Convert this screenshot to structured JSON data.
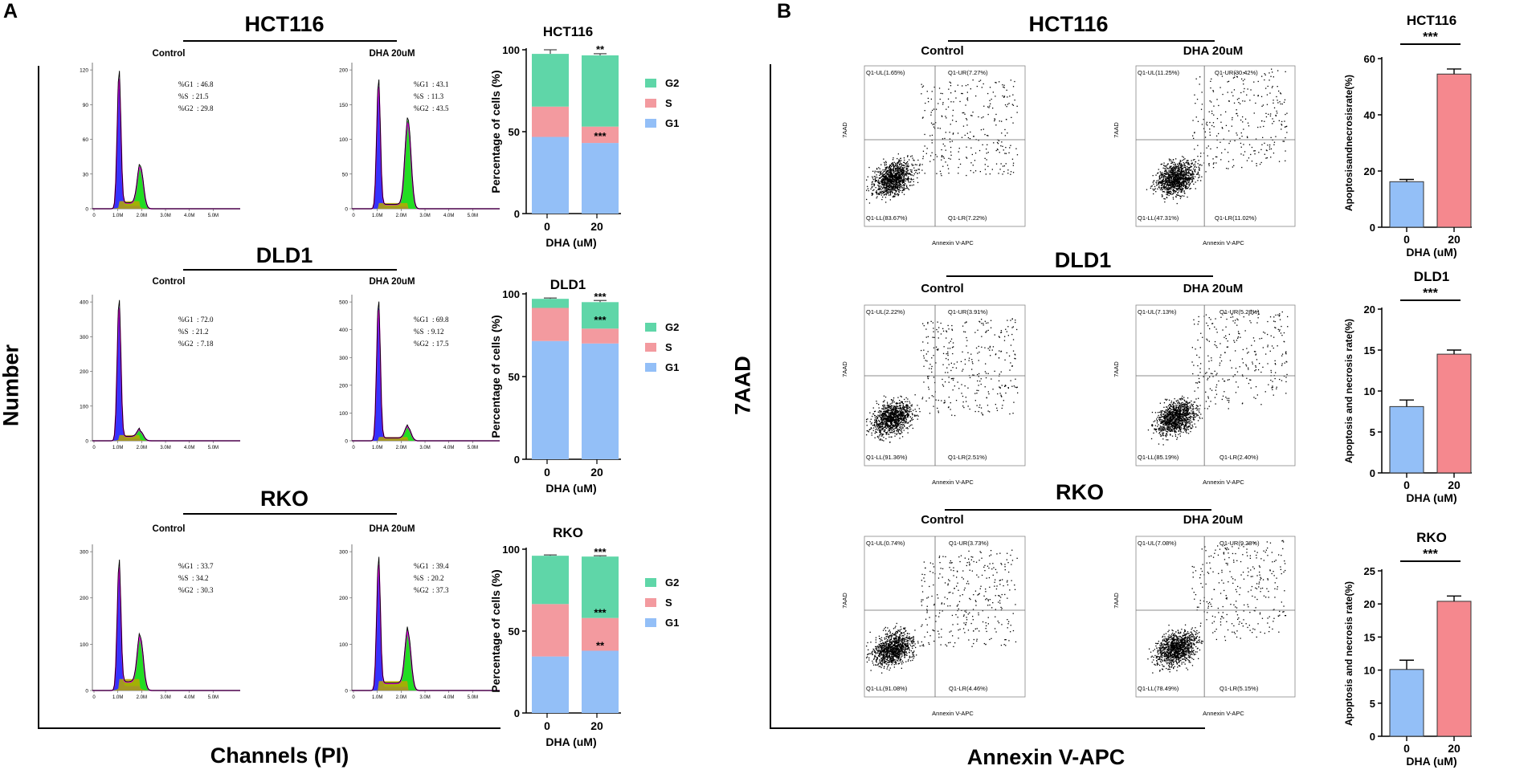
{
  "panel_a": {
    "label": "A",
    "y_axis_title": "Number",
    "x_axis_title": "Channels (PI)",
    "rows": [
      {
        "cell_line": "HCT116",
        "histograms": [
          {
            "condition": "Control",
            "g1_label": "%G1  : 46.8",
            "s_label": "%S  : 21.5",
            "g2_label": "%G2  : 29.8",
            "y_ticks": [
              "0",
              "30",
              "60",
              "90",
              "120"
            ]
          },
          {
            "condition": "DHA 20uM",
            "g1_label": "%G1  : 43.1",
            "s_label": "%S  : 11.3",
            "g2_label": "%G2  : 43.5",
            "y_ticks": [
              "0",
              "50",
              "100",
              "150",
              "200"
            ]
          }
        ]
      },
      {
        "cell_line": "DLD1",
        "histograms": [
          {
            "condition": "Control",
            "g1_label": "%G1  : 72.0",
            "s_label": "%S  : 21.2",
            "g2_label": "%G2  : 7.18",
            "y_ticks": [
              "0",
              "100",
              "200",
              "300",
              "400"
            ]
          },
          {
            "condition": "DHA 20uM",
            "g1_label": "%G1  : 69.8",
            "s_label": "%S  : 9.12",
            "g2_label": "%G2  : 17.5",
            "y_ticks": [
              "0",
              "100",
              "200",
              "300",
              "400",
              "500"
            ]
          }
        ]
      },
      {
        "cell_line": "RKO",
        "histograms": [
          {
            "condition": "Control",
            "g1_label": "%G1  : 33.7",
            "s_label": "%S  : 34.2",
            "g2_label": "%G2  : 30.3",
            "y_ticks": [
              "0",
              "100",
              "200",
              "300"
            ]
          },
          {
            "condition": "DHA 20uM",
            "g1_label": "%G1  : 39.4",
            "s_label": "%S  : 20.2",
            "g2_label": "%G2  : 37.3",
            "y_ticks": [
              "0",
              "100",
              "200",
              "300"
            ]
          }
        ]
      }
    ],
    "hist_x_ticks": [
      "0",
      "1.0M",
      "2.0M",
      "3.0M",
      "4.0M",
      "5.0M"
    ]
  },
  "panel_b": {
    "label": "B",
    "y_axis_title": "7AAD",
    "x_axis_title": "Annexin V-APC",
    "plot_y_label": "7AAD",
    "plot_x_label": "Annexin V-APC",
    "rows": [
      {
        "cell_line": "HCT116",
        "scatters": [
          {
            "condition": "Control",
            "ul": "Q1-UL(1.65%)",
            "ur": "Q1-UR(7.27%)",
            "ll": "Q1-LL(83.67%)",
            "lr": "Q1-LR(7.22%)"
          },
          {
            "condition": "DHA 20uM",
            "ul": "Q1-UL(11.25%)",
            "ur": "Q1-UR(30.42%)",
            "ll": "Q1-LL(47.31%)",
            "lr": "Q1-LR(11.02%)"
          }
        ]
      },
      {
        "cell_line": "DLD1",
        "scatters": [
          {
            "condition": "Control",
            "ul": "Q1-UL(2.22%)",
            "ur": "Q1-UR(3.91%)",
            "ll": "Q1-LL(91.36%)",
            "lr": "Q1-LR(2.51%)"
          },
          {
            "condition": "DHA 20uM",
            "ul": "Q1-UL(7.13%)",
            "ur": "Q1-UR(5.28%)",
            "ll": "Q1-LL(85.19%)",
            "lr": "Q1-LR(2.40%)"
          }
        ]
      },
      {
        "cell_line": "RKO",
        "scatters": [
          {
            "condition": "Control",
            "ul": "Q1-UL(0.74%)",
            "ur": "Q1-UR(3.73%)",
            "ll": "Q1-LL(91.08%)",
            "lr": "Q1-LR(4.46%)"
          },
          {
            "condition": "DHA 20uM",
            "ul": "Q1-UL(7.08%)",
            "ur": "Q1-UR(9.28%)",
            "ll": "Q1-LL(78.49%)",
            "lr": "Q1-LR(5.15%)"
          }
        ]
      }
    ]
  },
  "colors": {
    "g1": "#93bff7",
    "s": "#f39a9f",
    "g2": "#5fd6a8",
    "control_bar": "#93bff7",
    "dha_bar": "#f5888e",
    "hist_green": "#22dd22",
    "hist_blue": "#3333ff",
    "hist_olive": "#b8a800",
    "hist_magenta": "#e000e0"
  },
  "chart_data": [
    {
      "type": "bar",
      "stacked": true,
      "title": "HCT116",
      "categories": [
        "0",
        "20"
      ],
      "xlabel": "DHA (uM)",
      "ylabel": "Percentage of cells (%)",
      "ylim": [
        0,
        100
      ],
      "y_ticks": [
        "0",
        "50",
        "100"
      ],
      "series": [
        {
          "name": "G1",
          "values": [
            46.8,
            43.1
          ]
        },
        {
          "name": "S",
          "values": [
            18.5,
            10.0
          ]
        },
        {
          "name": "G2",
          "values": [
            32.2,
            43.5
          ]
        }
      ],
      "error_top": [
        2.5,
        1.0
      ],
      "annotations": [
        {
          "category": "20",
          "value": 100,
          "text": "**"
        },
        {
          "category": "20",
          "value": 47,
          "text": "***"
        }
      ]
    },
    {
      "type": "bar",
      "stacked": true,
      "title": "DLD1",
      "categories": [
        "0",
        "20"
      ],
      "xlabel": "DHA (uM)",
      "ylabel": "Percentage of cells (%)",
      "ylim": [
        0,
        100
      ],
      "y_ticks": [
        "0",
        "50",
        "100"
      ],
      "series": [
        {
          "name": "G1",
          "values": [
            71.5,
            70.0
          ]
        },
        {
          "name": "S",
          "values": [
            20.0,
            9.0
          ]
        },
        {
          "name": "G2",
          "values": [
            5.5,
            16.0
          ]
        }
      ],
      "error_top": [
        0.5,
        1.0
      ],
      "annotations": [
        {
          "category": "20",
          "value": 98,
          "text": "***"
        },
        {
          "category": "20",
          "value": 84,
          "text": "***"
        }
      ]
    },
    {
      "type": "bar",
      "stacked": true,
      "title": "RKO",
      "categories": [
        "0",
        "20"
      ],
      "xlabel": "DHA (uM)",
      "ylabel": "Percentage of cells (%)",
      "ylim": [
        0,
        100
      ],
      "y_ticks": [
        "0",
        "50",
        "100"
      ],
      "series": [
        {
          "name": "G1",
          "values": [
            34.5,
            38.0
          ]
        },
        {
          "name": "S",
          "values": [
            32.0,
            20.0
          ]
        },
        {
          "name": "G2",
          "values": [
            29.5,
            37.5
          ]
        }
      ],
      "error_top": [
        0.5,
        0.5
      ],
      "annotations": [
        {
          "category": "20",
          "value": 98,
          "text": "***"
        },
        {
          "category": "20",
          "value": 61,
          "text": "***"
        },
        {
          "category": "20",
          "value": 41,
          "text": "**"
        }
      ]
    },
    {
      "type": "bar",
      "title": "HCT116",
      "categories": [
        "0",
        "20"
      ],
      "xlabel": "DHA (uM)",
      "ylabel": "Apoptosisandnecrosisrate(%)",
      "ylim": [
        0,
        60
      ],
      "y_ticks": [
        "0",
        "20",
        "40",
        "60"
      ],
      "values": [
        16.2,
        54.5
      ],
      "errors": [
        0.8,
        1.8
      ],
      "significance": "***"
    },
    {
      "type": "bar",
      "title": "DLD1",
      "categories": [
        "0",
        "20"
      ],
      "xlabel": "DHA (uM)",
      "ylabel": "Apoptosis and necrosis rate(%)",
      "ylim": [
        0,
        20
      ],
      "y_ticks": [
        "0",
        "5",
        "10",
        "15",
        "20"
      ],
      "values": [
        8.1,
        14.5
      ],
      "errors": [
        0.8,
        0.5
      ],
      "significance": "***"
    },
    {
      "type": "bar",
      "title": "RKO",
      "categories": [
        "0",
        "20"
      ],
      "xlabel": "DHA (uM)",
      "ylabel": "Apoptosis and necrosis rate(%)",
      "ylim": [
        0,
        25
      ],
      "y_ticks": [
        "0",
        "5",
        "10",
        "15",
        "20",
        "25"
      ],
      "values": [
        10.1,
        20.4
      ],
      "errors": [
        1.4,
        0.8
      ],
      "significance": "***"
    }
  ]
}
